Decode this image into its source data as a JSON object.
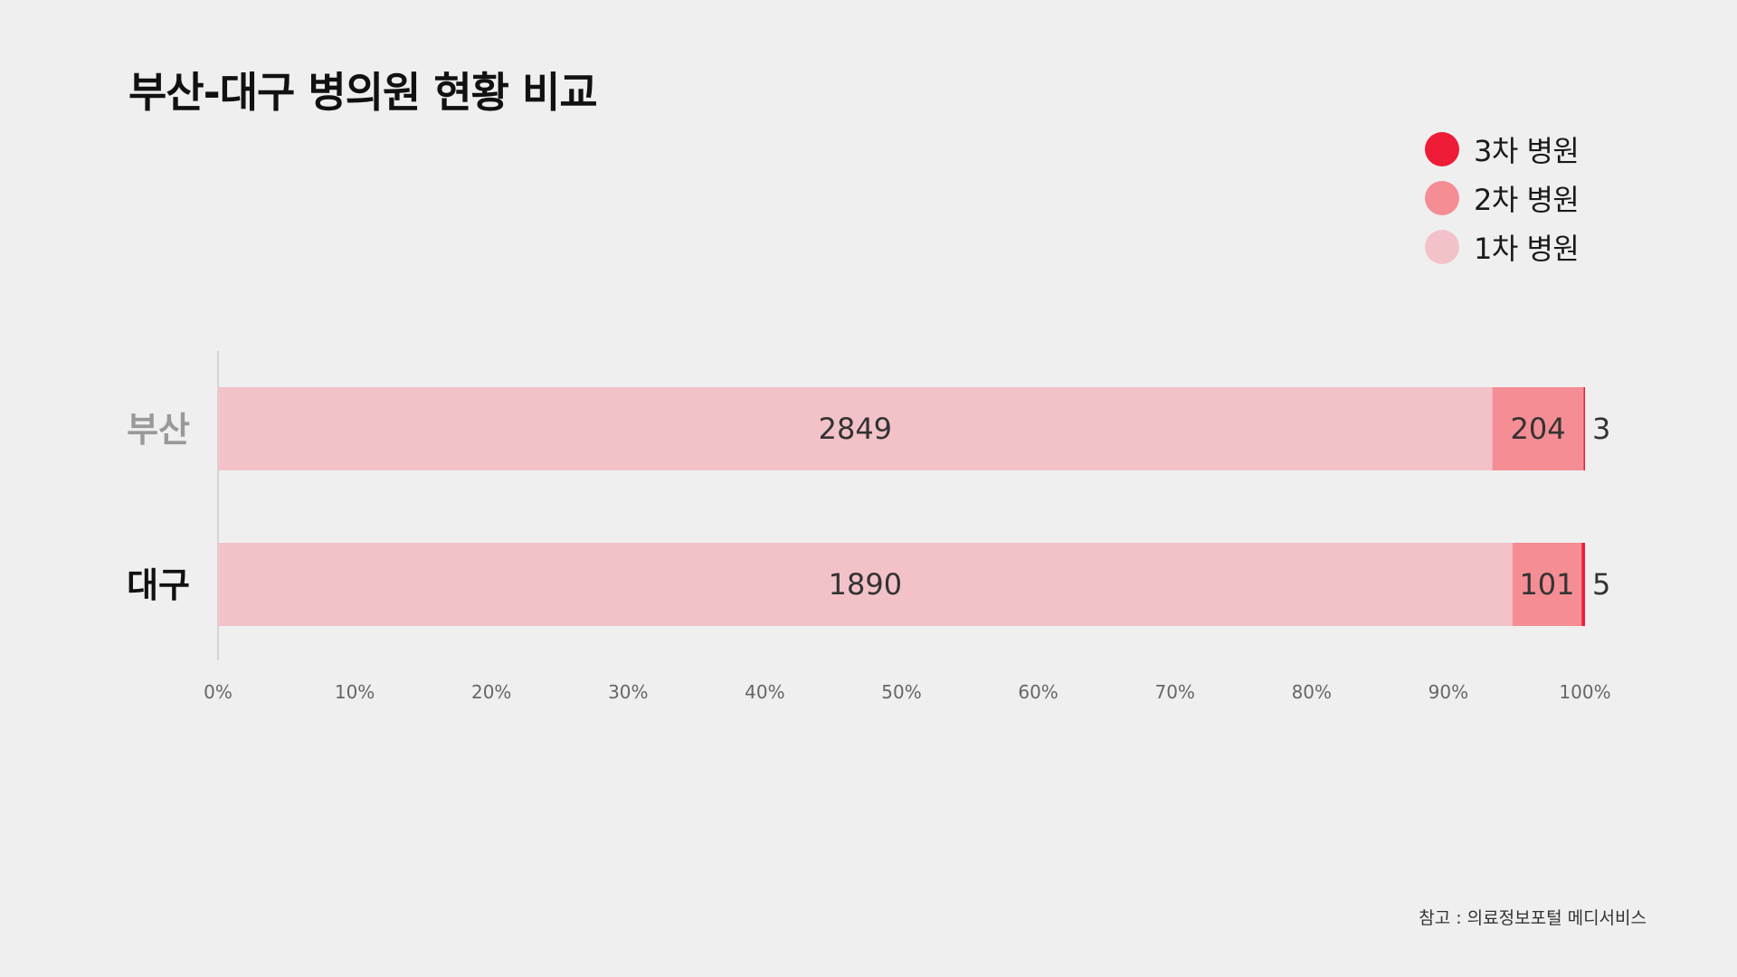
{
  "title": "부산-대구 병의원 현황 비교",
  "legend": [
    {
      "label": "3차 병원",
      "color": "#ee1c37"
    },
    {
      "label": "2차 병원",
      "color": "#f58d94"
    },
    {
      "label": "1차 병원",
      "color": "#f2c2c8"
    }
  ],
  "source": "참고 : 의료정보포털 메디서비스",
  "chart_data": {
    "type": "bar",
    "orientation": "horizontal",
    "stacked": "percent",
    "categories": [
      "부산",
      "대구"
    ],
    "category_colors": [
      "#999999",
      "#111111"
    ],
    "series": [
      {
        "name": "1차 병원",
        "color": "#f2c2c8",
        "values": [
          2849,
          1890
        ]
      },
      {
        "name": "2차 병원",
        "color": "#f58d94",
        "values": [
          204,
          101
        ]
      },
      {
        "name": "3차 병원",
        "color": "#ee1c37",
        "values": [
          3,
          5
        ]
      }
    ],
    "xlim": [
      0,
      100
    ],
    "xticks": [
      "0%",
      "10%",
      "20%",
      "30%",
      "40%",
      "50%",
      "60%",
      "70%",
      "80%",
      "90%",
      "100%"
    ],
    "grid": false,
    "legend_position": "top-right"
  }
}
